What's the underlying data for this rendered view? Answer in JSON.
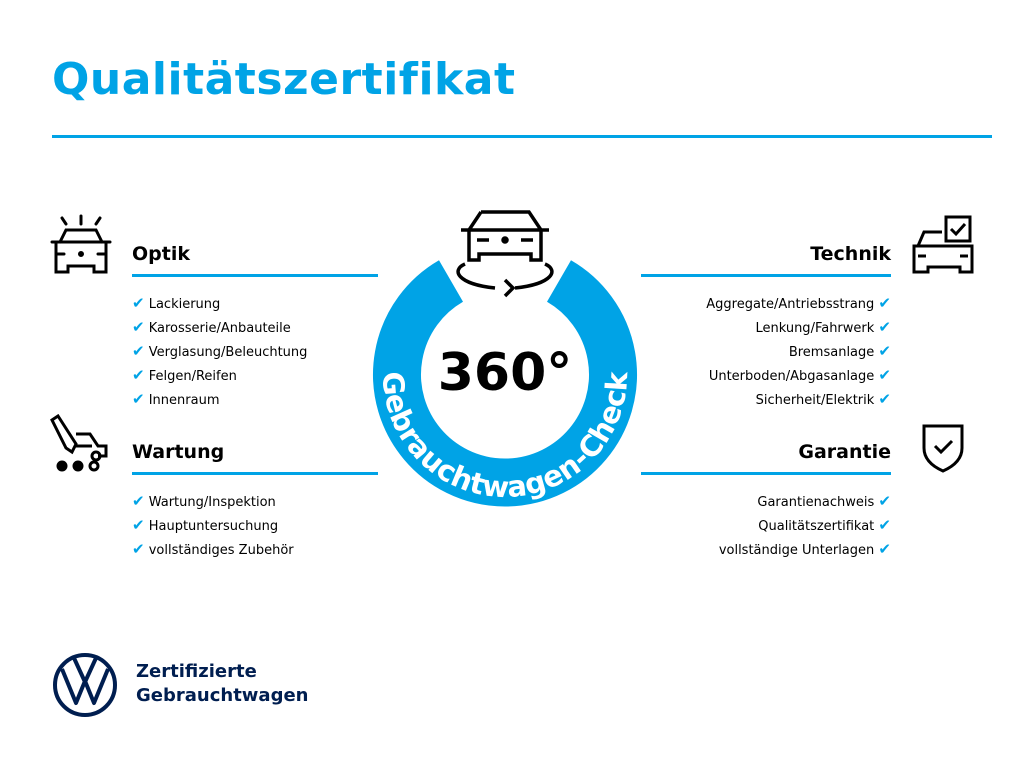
{
  "title": "Qualitätszertifikat",
  "colors": {
    "accent": "#00a3e6",
    "brand": "#001e50"
  },
  "center": {
    "degrees": "360°",
    "arc_text": "Gebrauchtwagen-Check",
    "icon": "car-rotate-icon"
  },
  "sections": {
    "optik": {
      "title": "Optik",
      "icon": "car-lights-icon",
      "items": [
        "Lackierung",
        "Karosserie/Anbauteile",
        "Verglasung/Beleuchtung",
        "Felgen/Reifen",
        "Innenraum"
      ]
    },
    "wartung": {
      "title": "Wartung",
      "icon": "car-service-icon",
      "items": [
        "Wartung/Inspektion",
        "Hauptuntersuchung",
        "vollständiges Zubehör"
      ]
    },
    "technik": {
      "title": "Technik",
      "icon": "car-checkbox-icon",
      "items": [
        "Aggregate/Antriebsstrang",
        "Lenkung/Fahrwerk",
        "Bremsanlage",
        "Unterboden/Abgasanlage",
        "Sicherheit/Elektrik"
      ]
    },
    "garantie": {
      "title": "Garantie",
      "icon": "shield-check-icon",
      "items": [
        "Garantienachweis",
        "Qualitätszertifikat",
        "vollständige Unterlagen"
      ]
    }
  },
  "check_mark": "✔",
  "footer": {
    "line1": "Zertifizierte",
    "line2": "Gebrauchtwagen",
    "logo": "VW"
  }
}
